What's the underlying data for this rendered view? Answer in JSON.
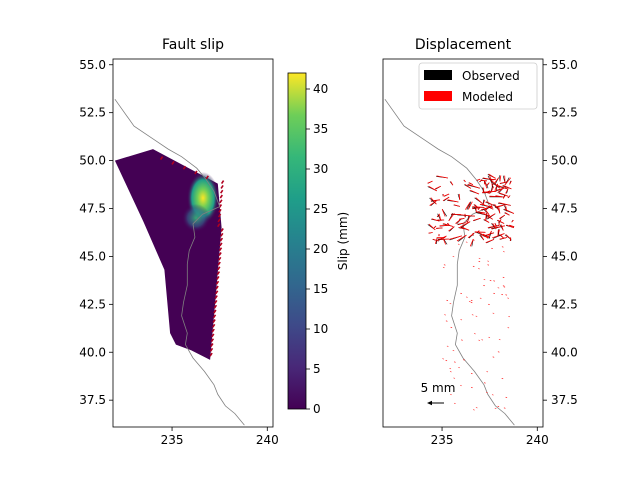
{
  "chart_data": [
    {
      "type": "heatmap",
      "title": "Fault slip",
      "xlim": [
        231.9,
        240.3
      ],
      "ylim": [
        36.1,
        55.3
      ],
      "xticks": [
        "235",
        "240"
      ],
      "yticks": [
        "37.5",
        "40.0",
        "42.5",
        "45.0",
        "47.5",
        "50.0",
        "52.5",
        "55.0"
      ],
      "colorbar": {
        "label": "Slip (mm)",
        "range": [
          0,
          42
        ],
        "ticks": [
          "0",
          "5",
          "10",
          "15",
          "20",
          "25",
          "30",
          "35",
          "40"
        ],
        "colormap": "viridis"
      },
      "fault_outline_deg": [
        [
          232.0,
          50.0
        ],
        [
          234.0,
          50.6
        ],
        [
          237.4,
          48.8
        ],
        [
          237.6,
          46.5
        ],
        [
          237.3,
          43.0
        ],
        [
          237.0,
          39.6
        ],
        [
          236.0,
          40.1
        ],
        [
          235.2,
          40.4
        ],
        [
          234.9,
          41.0
        ],
        [
          234.6,
          44.3
        ],
        [
          233.5,
          46.8
        ],
        [
          232.0,
          50.0
        ]
      ],
      "slip_patches": [
        {
          "lon": 236.5,
          "lat": 47.8,
          "slip": 40
        },
        {
          "lon": 236.2,
          "lat": 47.1,
          "slip": 28
        },
        {
          "lon": 235.6,
          "lat": 48.0,
          "slip": 22
        },
        {
          "lon": 236.0,
          "lat": 46.5,
          "slip": 15
        }
      ],
      "ridge_color": "#b00020"
    },
    {
      "type": "scatter",
      "title": "Displacement",
      "xlim": [
        231.9,
        240.3
      ],
      "ylim": [
        36.1,
        55.3
      ],
      "xticks": [
        "235",
        "240"
      ],
      "yticks": [
        "37.5",
        "40.0",
        "42.5",
        "45.0",
        "47.5",
        "50.0",
        "52.5",
        "55.0"
      ],
      "y_axis_side": "right",
      "legend": {
        "placement": "top-right",
        "entries": [
          {
            "label": "Observed",
            "color": "#000000"
          },
          {
            "label": "Modeled",
            "color": "#ff0000"
          }
        ]
      },
      "scale_label": "5 mm",
      "vector_cluster": {
        "lon_range": [
          234.5,
          238.8
        ],
        "lat_range": [
          45.8,
          49.2
        ]
      },
      "sparse_region": {
        "lon_range": [
          235.0,
          238.5
        ],
        "lat_range": [
          37.0,
          46.0
        ]
      }
    }
  ],
  "colors": {
    "coast": "#808080",
    "frame": "#000000",
    "modeled": "#ff0000",
    "observed": "#000000"
  }
}
